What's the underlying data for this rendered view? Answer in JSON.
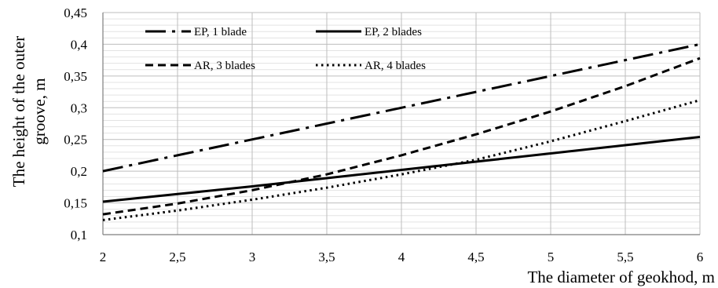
{
  "chart_data": {
    "type": "line",
    "xlabel": "The diameter of geokhod,  m",
    "ylabel_lines": [
      "The height of the outer",
      "groove,  m"
    ],
    "x_ticks": [
      "2",
      "2,5",
      "3",
      "3,5",
      "4",
      "4,5",
      "5",
      "5,5",
      "6"
    ],
    "y_ticks": [
      "0,1",
      "0,15",
      "0,2",
      "0,25",
      "0,3",
      "0,35",
      "0,4",
      "0,45"
    ],
    "xlim": [
      2,
      6
    ],
    "ylim": [
      0.1,
      0.45
    ],
    "grid": true,
    "legend_position": "top-left inside plot",
    "series": [
      {
        "name": "EP, 1 blade",
        "style": "dash-dot",
        "x": [
          2,
          2.5,
          3,
          3.5,
          4,
          4.5,
          5,
          5.5,
          6
        ],
        "y": [
          0.2,
          0.225,
          0.25,
          0.275,
          0.3,
          0.325,
          0.35,
          0.375,
          0.4
        ]
      },
      {
        "name": "EP, 2 blades",
        "style": "solid",
        "x": [
          2,
          2.5,
          3,
          3.5,
          4,
          4.5,
          5,
          5.5,
          6
        ],
        "y": [
          0.152,
          0.164,
          0.176,
          0.189,
          0.202,
          0.215,
          0.228,
          0.241,
          0.254
        ]
      },
      {
        "name": "AR, 3 blades",
        "style": "dashed",
        "x": [
          2,
          2.5,
          3,
          3.5,
          4,
          4.5,
          5,
          5.5,
          6
        ],
        "y": [
          0.132,
          0.149,
          0.17,
          0.195,
          0.225,
          0.258,
          0.294,
          0.334,
          0.378
        ]
      },
      {
        "name": "AR, 4 blades",
        "style": "dotted",
        "x": [
          2,
          2.5,
          3,
          3.5,
          4,
          4.5,
          5,
          5.5,
          6
        ],
        "y": [
          0.123,
          0.138,
          0.155,
          0.174,
          0.195,
          0.218,
          0.247,
          0.279,
          0.312
        ]
      }
    ]
  }
}
